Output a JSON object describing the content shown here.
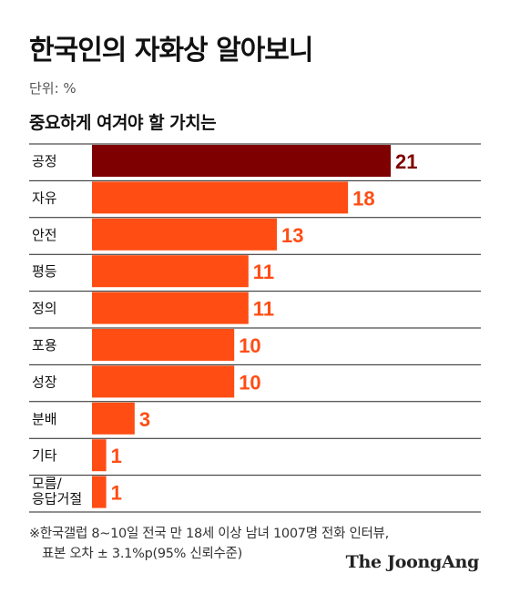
{
  "header": {
    "title": "한국인의 자화상 알아보니",
    "unit": "단위: %",
    "subtitle": "중요하게 여겨야 할 가치는"
  },
  "footer": {
    "note_line1": "※한국갤럽 8~10일 전국 만 18세 이상 남녀 1007명 전화 인터뷰,",
    "note_line2": "표본 오차 ± 3.1%p(95% 신뢰수준)",
    "brand": "The JoongAng"
  },
  "colors": {
    "highlight": "#7f0000",
    "bar": "#ff4d14",
    "highlight_label": "#7f0000",
    "bar_label": "#ff4d14",
    "separator": "#222222"
  },
  "chart_data": {
    "type": "bar",
    "orientation": "horizontal",
    "title": "중요하게 여겨야 할 가치는",
    "unit": "%",
    "categories": [
      "공정",
      "자유",
      "안전",
      "평등",
      "정의",
      "포용",
      "성장",
      "분배",
      "기타",
      "모름/\n응답거절"
    ],
    "values": [
      21,
      18,
      13,
      11,
      11,
      10,
      10,
      3,
      1,
      1
    ],
    "highlight_index": 0,
    "xlim": [
      0,
      21
    ]
  }
}
